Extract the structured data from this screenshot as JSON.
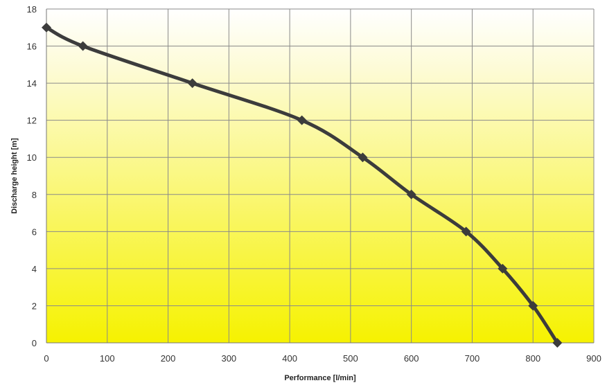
{
  "chart_data": {
    "type": "line",
    "title": "",
    "xlabel": "Performance [l/min]",
    "ylabel": "Discharge  height [m]",
    "xlim": [
      0,
      900
    ],
    "ylim": [
      0,
      18
    ],
    "xticks": [
      0,
      100,
      200,
      300,
      400,
      500,
      600,
      700,
      800,
      900
    ],
    "yticks": [
      0,
      2,
      4,
      6,
      8,
      10,
      12,
      14,
      16,
      18
    ],
    "grid": true,
    "legend": "none",
    "background_gradient": [
      "#ffffff",
      "#f6f200"
    ],
    "series": [
      {
        "color": "#3c3c3c",
        "marker": "diamond",
        "smooth": true,
        "points": [
          {
            "x": 0,
            "y": 17
          },
          {
            "x": 60,
            "y": 16
          },
          {
            "x": 240,
            "y": 14
          },
          {
            "x": 420,
            "y": 12
          },
          {
            "x": 520,
            "y": 10
          },
          {
            "x": 600,
            "y": 8
          },
          {
            "x": 690,
            "y": 6
          },
          {
            "x": 750,
            "y": 4
          },
          {
            "x": 800,
            "y": 2
          },
          {
            "x": 840,
            "y": 0
          }
        ]
      }
    ]
  }
}
